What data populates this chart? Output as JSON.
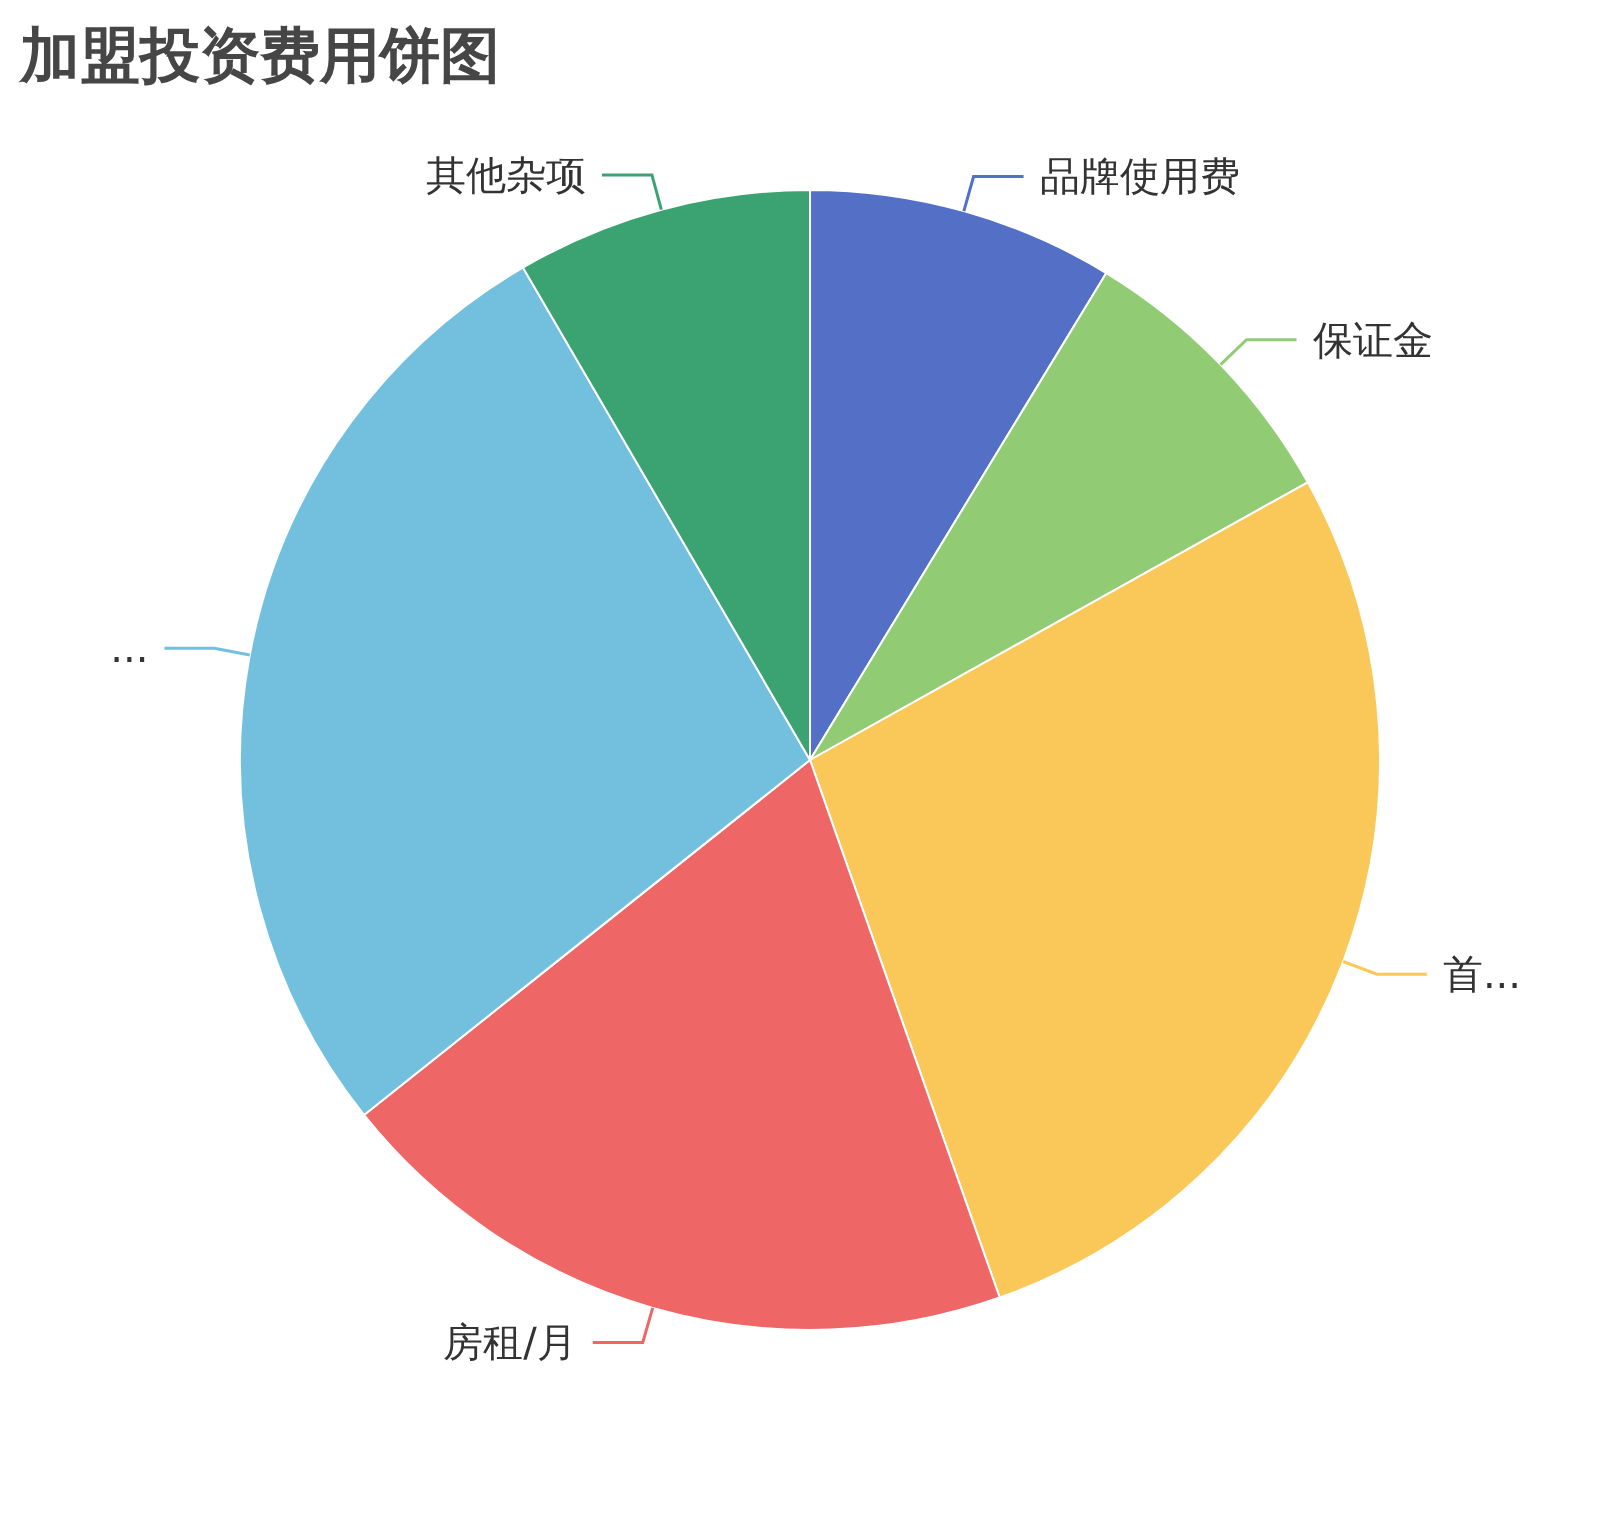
{
  "chart_data": {
    "type": "pie",
    "title": "加盟投资费用饼图",
    "categories": [
      "品牌使用费",
      "保证金",
      "首...",
      "房租/月",
      "...",
      "其他杂项"
    ],
    "values": [
      8.7,
      8.2,
      27.7,
      19.7,
      27.3,
      8.4
    ],
    "colors": [
      "#5470c6",
      "#91cc75",
      "#fac858",
      "#ee6666",
      "#73c0de",
      "#3ba272"
    ]
  }
}
